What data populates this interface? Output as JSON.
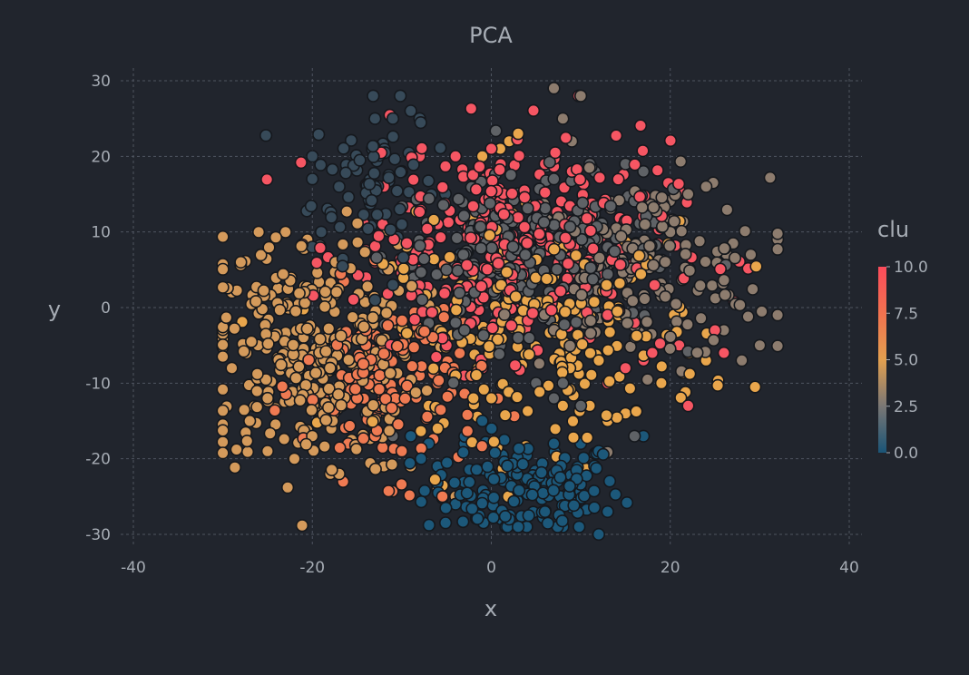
{
  "chart_data": {
    "type": "scatter",
    "title": "PCA",
    "xlabel": "x",
    "ylabel": "y",
    "xlim": [
      -40,
      40
    ],
    "ylim": [
      -30,
      30
    ],
    "xticks": [
      -40,
      -20,
      0,
      20,
      40
    ],
    "yticks": [
      -30,
      -20,
      -10,
      0,
      10,
      20,
      30
    ],
    "grid": true,
    "background": "#21252d",
    "colorbar": {
      "title": "clu",
      "range": [
        0,
        10
      ],
      "tick_labels": [
        "10.0",
        "7.5",
        "5.0",
        "2.5",
        "0.0"
      ],
      "tick_values": [
        10,
        7.5,
        5,
        2.5,
        0
      ],
      "colorscale": [
        [
          0.0,
          "#1a5577"
        ],
        [
          0.25,
          "#7a7775"
        ],
        [
          0.5,
          "#e3a04f"
        ],
        [
          0.75,
          "#f2724f"
        ],
        [
          1.0,
          "#fb4b5b"
        ]
      ]
    },
    "clusters": [
      {
        "clu": 0,
        "color": "#1c587a",
        "center": [
          3.5,
          -24
        ],
        "spread": [
          5.5,
          3.2
        ],
        "count": 150,
        "points": [
          [
            -3,
            -18
          ],
          [
            -1,
            -15
          ],
          [
            7,
            -18
          ],
          [
            10,
            -18
          ],
          [
            12,
            -19
          ],
          [
            17,
            -17
          ],
          [
            -9,
            -17
          ],
          [
            -7,
            -18
          ],
          [
            -6,
            -21
          ],
          [
            8,
            -29
          ],
          [
            3,
            -29
          ],
          [
            -4,
            -26
          ],
          [
            6,
            -27
          ],
          [
            13,
            -27
          ],
          [
            12,
            -30
          ]
        ]
      },
      {
        "clu": 1,
        "color": "#374a59",
        "center": [
          -13,
          17
        ],
        "spread": [
          3.5,
          5
        ],
        "count": 70,
        "points": [
          [
            -9,
            26
          ],
          [
            -11,
            25
          ],
          [
            -8,
            25
          ],
          [
            -13,
            25
          ],
          [
            -20,
            20
          ],
          [
            -20,
            17
          ],
          [
            -17,
            16
          ],
          [
            -19,
            10
          ],
          [
            -20,
            8
          ],
          [
            -11,
            3
          ],
          [
            -13,
            1
          ],
          [
            -10,
            11
          ]
        ]
      },
      {
        "clu": 2,
        "color": "#5f6266",
        "center": [
          4,
          7
        ],
        "spread": [
          8,
          5
        ],
        "count": 220,
        "points": [
          [
            -5,
            5
          ],
          [
            -4,
            -2
          ],
          [
            -3,
            -3
          ],
          [
            1,
            -5
          ],
          [
            3,
            -4
          ],
          [
            5,
            -10
          ],
          [
            7,
            -12
          ],
          [
            8,
            -10
          ],
          [
            10,
            -13
          ],
          [
            -14,
            -14
          ],
          [
            -11,
            -17
          ],
          [
            16,
            -17
          ],
          [
            17,
            18
          ],
          [
            15,
            19
          ],
          [
            11,
            19
          ],
          [
            7,
            17
          ]
        ]
      },
      {
        "clu": 3,
        "color": "#8d7c6e",
        "center": [
          17,
          5
        ],
        "spread": [
          7,
          6
        ],
        "count": 180,
        "points": [
          [
            7,
            29
          ],
          [
            10,
            28
          ],
          [
            8,
            25
          ],
          [
            9,
            22
          ],
          [
            29,
            7
          ],
          [
            32,
            -1
          ],
          [
            30,
            -5
          ],
          [
            28,
            -7
          ],
          [
            26,
            -3
          ],
          [
            22,
            15
          ],
          [
            24,
            16
          ],
          [
            20,
            10
          ]
        ]
      },
      {
        "clu": 5,
        "color": "#d49a5b",
        "center": [
          -20,
          -6
        ],
        "spread": [
          6,
          8
        ],
        "count": 300,
        "points": [
          [
            -29,
            2
          ],
          [
            -28,
            6
          ],
          [
            -26,
            10
          ],
          [
            -23,
            10
          ],
          [
            -29,
            -8
          ],
          [
            -27,
            -15
          ],
          [
            -25,
            -19
          ],
          [
            -22,
            -20
          ],
          [
            -18,
            -22
          ],
          [
            -12,
            -21
          ],
          [
            -9,
            -21
          ],
          [
            -6,
            -24
          ],
          [
            -4,
            -25
          ],
          [
            -17,
            -22
          ],
          [
            -20,
            -17
          ],
          [
            -25,
            -12
          ]
        ]
      },
      {
        "clu": 6,
        "color": "#e9a64c",
        "center": [
          6,
          -3
        ],
        "spread": [
          9,
          7
        ],
        "count": 220,
        "points": [
          [
            1,
            21
          ],
          [
            2,
            22
          ],
          [
            3,
            23
          ],
          [
            -1,
            20
          ],
          [
            -2,
            12
          ],
          [
            11,
            -13
          ],
          [
            13,
            -15
          ],
          [
            15,
            -14
          ],
          [
            8,
            -13
          ],
          [
            -4,
            -9
          ],
          [
            -2,
            -12
          ],
          [
            0,
            -12
          ],
          [
            -7,
            -13
          ],
          [
            -6,
            -16
          ],
          [
            19,
            -10
          ],
          [
            24,
            -7
          ]
        ]
      },
      {
        "clu": 7,
        "color": "#ef7a52",
        "center": [
          -11,
          -10
        ],
        "spread": [
          5,
          6
        ],
        "count": 140,
        "points": [
          [
            -14,
            -3
          ],
          [
            -12,
            -5
          ],
          [
            -10,
            -6
          ],
          [
            -8,
            -9
          ],
          [
            -6,
            -10
          ],
          [
            -13,
            -17
          ],
          [
            -10,
            -19
          ],
          [
            -15,
            -12
          ],
          [
            -16,
            -18
          ],
          [
            -11,
            -14
          ]
        ]
      },
      {
        "clu": 9,
        "color": "#f65663",
        "center": [
          2,
          8
        ],
        "spread": [
          9,
          7
        ],
        "count": 300,
        "points": [
          [
            -10,
            18
          ],
          [
            -12,
            16
          ],
          [
            -8,
            20
          ],
          [
            -4,
            20
          ],
          [
            0,
            21
          ],
          [
            6,
            19
          ],
          [
            9,
            18
          ],
          [
            -13,
            6
          ],
          [
            -14,
            4
          ],
          [
            -5,
            -5
          ],
          [
            -3,
            -9
          ],
          [
            -1,
            -8
          ],
          [
            13,
            -10
          ],
          [
            15,
            -8
          ],
          [
            18,
            -6
          ],
          [
            21,
            -5
          ],
          [
            22,
            -13
          ],
          [
            26,
            -6
          ],
          [
            25,
            -3
          ],
          [
            16,
            -2
          ],
          [
            13,
            -1
          ],
          [
            11,
            -4
          ]
        ]
      }
    ]
  }
}
